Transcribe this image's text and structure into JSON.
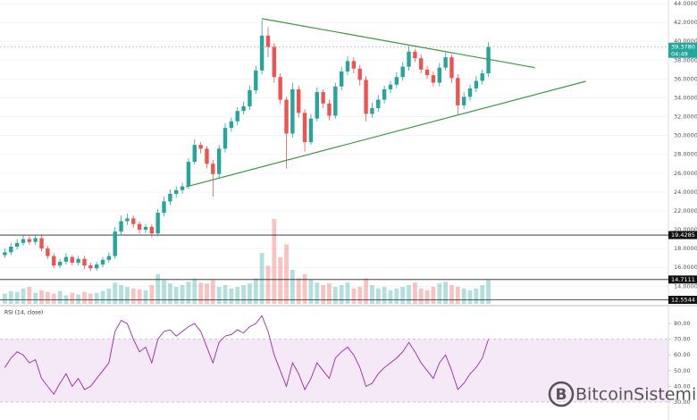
{
  "chart_data": [
    {
      "type": "candlestick",
      "open": [
        17.3,
        17.6,
        18.2,
        18.6,
        19.0,
        18.7,
        19.1,
        18.0,
        17.2,
        16.2,
        16.6,
        17.1,
        16.5,
        16.9,
        16.2,
        15.9,
        16.3,
        16.8,
        17.2,
        19.8,
        20.9,
        21.2,
        20.6,
        20.0,
        20.3,
        19.6,
        21.8,
        23.0,
        23.8,
        24.2,
        24.6,
        27.2,
        29.0,
        28.6,
        27.0,
        25.9,
        28.6,
        30.8,
        31.5,
        32.6,
        33.1,
        34.8,
        36.9,
        40.6,
        39.4,
        36.2,
        33.8,
        30.2,
        34.9,
        32.4,
        29.3,
        31.8,
        34.6,
        33.4,
        32.1,
        35.2,
        36.8,
        37.9,
        37.1,
        35.9,
        32.3,
        32.9,
        33.8,
        34.9,
        35.4,
        36.2,
        37.3,
        38.9,
        38.2,
        37.0,
        36.4,
        35.6,
        37.2,
        38.3,
        36.1,
        33.2,
        34.1,
        35.0,
        35.8,
        36.6
      ],
      "high": [
        18.0,
        18.6,
        19.0,
        19.5,
        19.3,
        19.5,
        19.4,
        18.3,
        17.5,
        16.9,
        17.5,
        17.3,
        17.2,
        17.2,
        16.5,
        16.6,
        17.1,
        17.6,
        20.3,
        21.5,
        21.7,
        21.5,
        20.9,
        20.6,
        20.6,
        22.2,
        23.5,
        24.3,
        24.6,
        25.0,
        27.6,
        29.6,
        29.3,
        28.9,
        27.4,
        29.0,
        31.3,
        31.9,
        33.0,
        33.6,
        35.3,
        37.4,
        42.2,
        41.5,
        39.8,
        36.6,
        34.1,
        35.6,
        35.3,
        32.8,
        32.3,
        35.1,
        34.9,
        33.8,
        35.6,
        37.3,
        38.4,
        38.3,
        37.5,
        36.3,
        33.5,
        34.3,
        35.3,
        35.8,
        36.7,
        37.8,
        39.5,
        39.2,
        38.6,
        37.4,
        36.8,
        37.7,
        38.8,
        38.6,
        36.5,
        34.6,
        35.4,
        36.3,
        37.0,
        39.9
      ],
      "low": [
        17.0,
        17.3,
        17.9,
        18.3,
        18.4,
        18.4,
        17.7,
        16.9,
        15.9,
        15.9,
        16.3,
        16.2,
        16.2,
        15.8,
        15.6,
        15.6,
        16.0,
        16.5,
        16.9,
        19.4,
        20.5,
        20.2,
        19.6,
        19.6,
        19.2,
        19.3,
        21.4,
        22.6,
        23.4,
        23.8,
        24.3,
        26.9,
        28.1,
        26.5,
        23.5,
        25.5,
        28.2,
        30.4,
        31.1,
        32.2,
        32.7,
        34.4,
        36.5,
        38.3,
        35.6,
        33.3,
        26.5,
        29.8,
        31.9,
        28.3,
        29.0,
        31.5,
        32.9,
        31.6,
        31.8,
        34.8,
        36.4,
        36.6,
        35.3,
        31.5,
        31.9,
        32.5,
        33.4,
        34.5,
        35.0,
        35.8,
        36.9,
        37.8,
        36.6,
        36.0,
        35.2,
        35.2,
        36.9,
        35.6,
        32.2,
        32.8,
        33.7,
        34.6,
        35.4,
        36.2
      ],
      "close": [
        17.6,
        18.2,
        18.6,
        19.0,
        18.7,
        19.1,
        18.0,
        17.2,
        16.2,
        16.6,
        17.1,
        16.5,
        16.9,
        16.2,
        15.9,
        16.3,
        16.8,
        17.2,
        19.8,
        20.9,
        21.2,
        20.6,
        20.0,
        20.3,
        19.6,
        21.8,
        23.0,
        23.8,
        24.2,
        24.6,
        27.2,
        29.0,
        28.6,
        27.0,
        25.9,
        28.6,
        30.8,
        31.5,
        32.6,
        33.1,
        34.8,
        36.9,
        40.6,
        39.4,
        36.2,
        33.8,
        30.2,
        34.9,
        32.4,
        29.3,
        31.8,
        34.6,
        33.4,
        32.1,
        35.2,
        36.8,
        37.9,
        37.1,
        35.9,
        32.3,
        32.9,
        33.8,
        34.9,
        35.4,
        36.2,
        37.3,
        38.9,
        38.2,
        37.0,
        36.4,
        35.6,
        37.2,
        38.3,
        36.1,
        33.2,
        34.1,
        35.0,
        35.8,
        36.6,
        39.38
      ],
      "volume": [
        12,
        15,
        14,
        18,
        20,
        13,
        16,
        14,
        12,
        15,
        10,
        13,
        11,
        14,
        12,
        13,
        15,
        18,
        25,
        22,
        20,
        18,
        17,
        16,
        22,
        35,
        28,
        24,
        20,
        22,
        26,
        30,
        25,
        24,
        28,
        20,
        22,
        18,
        20,
        22,
        24,
        30,
        60,
        45,
        100,
        55,
        70,
        40,
        30,
        35,
        28,
        25,
        22,
        24,
        20,
        22,
        25,
        18,
        20,
        30,
        22,
        18,
        20,
        16,
        18,
        20,
        22,
        25,
        18,
        16,
        20,
        24,
        26,
        22,
        20,
        18,
        16,
        18,
        22,
        28
      ],
      "up_color": "#26a69a",
      "down_color": "#ef5350",
      "ylim": [
        12.13,
        44.38
      ],
      "yticks": [
        {
          "value": 14,
          "label": "14.0000"
        },
        {
          "value": 16,
          "label": "16.0000"
        },
        {
          "value": 18,
          "label": "18.0000"
        },
        {
          "value": 20,
          "label": "20.0000"
        },
        {
          "value": 22,
          "label": "22.0000"
        },
        {
          "value": 24,
          "label": "24.0000"
        },
        {
          "value": 26,
          "label": "26.0000"
        },
        {
          "value": 28,
          "label": "28.0000"
        },
        {
          "value": 30,
          "label": "30.0000"
        },
        {
          "value": 32,
          "label": "32.0000"
        },
        {
          "value": 34,
          "label": "34.0000"
        },
        {
          "value": 36,
          "label": "36.0000"
        },
        {
          "value": 38,
          "label": "38.0000"
        },
        {
          "value": 40,
          "label": "40.0000"
        },
        {
          "value": 42,
          "label": "42.0000"
        },
        {
          "value": 44,
          "label": "44.0000"
        }
      ],
      "grid": true,
      "price_lines": [
        {
          "value": 19.4285,
          "label": "19.4285"
        },
        {
          "value": 14.7111,
          "label": "14.7111"
        },
        {
          "value": 12.5544,
          "label": "12.5544"
        }
      ],
      "current_price": {
        "value": 39.378,
        "label": "39.3780",
        "time": "04:49",
        "color": "#26a69a"
      },
      "trendline_color": "#3a9a3a",
      "trendlines": [
        {
          "x": [
            42.0,
            86.6
          ],
          "y": [
            42.4,
            37.2
          ]
        },
        {
          "x": [
            29.6,
            94.9
          ],
          "y": [
            24.55,
            35.75
          ]
        }
      ]
    },
    {
      "type": "line",
      "title": "RSI (14, close)",
      "color": "#9c27b0",
      "values": [
        52,
        58,
        62,
        60,
        55,
        57,
        45,
        40,
        35,
        42,
        48,
        40,
        45,
        38,
        40,
        45,
        50,
        55,
        75,
        82,
        80,
        70,
        62,
        65,
        55,
        70,
        75,
        76,
        72,
        75,
        78,
        80,
        75,
        65,
        55,
        68,
        72,
        73,
        76,
        74,
        78,
        80,
        85,
        75,
        60,
        50,
        40,
        55,
        48,
        38,
        45,
        55,
        50,
        45,
        58,
        62,
        65,
        60,
        52,
        40,
        42,
        48,
        52,
        55,
        58,
        62,
        68,
        62,
        55,
        50,
        45,
        55,
        60,
        50,
        38,
        42,
        48,
        52,
        58,
        70
      ],
      "band": [
        30,
        70
      ],
      "band_color": "rgba(156,39,176,0.1)",
      "ylim": [
        18.6,
        89.7
      ],
      "yticks": [
        {
          "value": 80,
          "label": "80.00"
        },
        {
          "value": 70,
          "label": "70.00"
        },
        {
          "value": 60,
          "label": "60.00"
        },
        {
          "value": 50,
          "label": "50.00"
        },
        {
          "value": 40,
          "label": "40.00"
        },
        {
          "value": 30,
          "label": "30.00"
        }
      ]
    }
  ],
  "watermark": "BitcoinSistemi"
}
